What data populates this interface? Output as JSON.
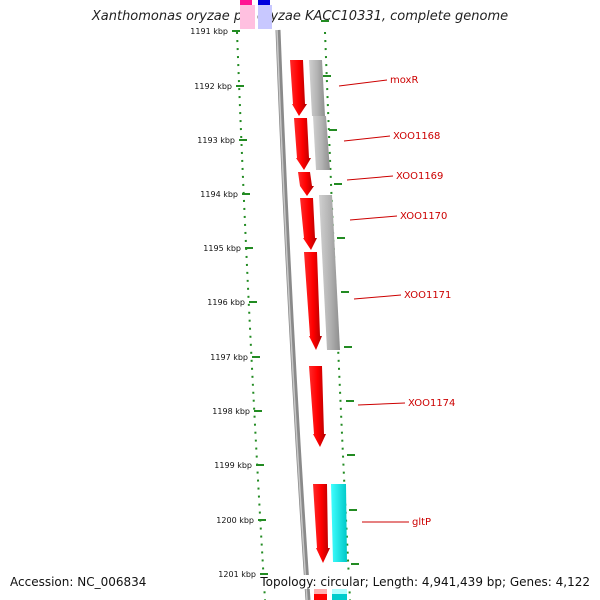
{
  "title": "Xanthomonas oryzae pv. oryzae KACC10331, complete genome",
  "ticks": [
    "1191 kbp",
    "1192 kbp",
    "1193 kbp",
    "1194 kbp",
    "1195 kbp",
    "1196 kbp",
    "1197 kbp",
    "1198 kbp",
    "1199 kbp",
    "1200 kbp",
    "1201 kbp"
  ],
  "genes": [
    {
      "label": "moxR",
      "color": "#ff0000"
    },
    {
      "label": "XOO1168",
      "color": "#ff0000"
    },
    {
      "label": "XOO1169",
      "color": "#ff0000"
    },
    {
      "label": "XOO1170",
      "color": "#ff0000"
    },
    {
      "label": "XOO1171",
      "color": "#ff0000"
    },
    {
      "label": "XOO1174",
      "color": "#ff0000"
    },
    {
      "label": "gltP",
      "color": "#ff0000"
    }
  ],
  "colors": {
    "cds": "#ff0000",
    "gene_grey": "#aaaaaa",
    "tick": "#228b22",
    "backbone": "#888888",
    "cyan": "#00ffff",
    "magenta": "#ff1493",
    "blue": "#0000ff"
  },
  "footer": {
    "accession": "Accession: NC_006834",
    "topology": "Topology: circular; Length: 4,941,439 bp; Genes: 4,122"
  }
}
